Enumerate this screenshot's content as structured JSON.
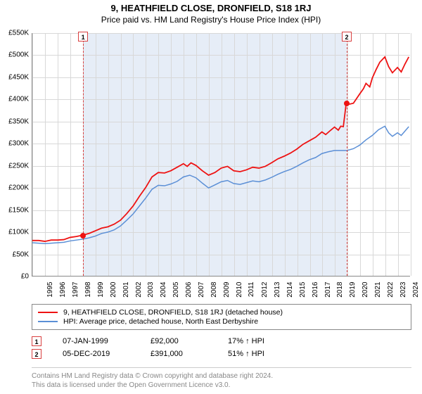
{
  "title": "9, HEATHFIELD CLOSE, DRONFIELD, S18 1RJ",
  "subtitle": "Price paid vs. HM Land Registry's House Price Index (HPI)",
  "chart": {
    "type": "line",
    "background_color": "#ffffff",
    "grid_color": "#d8d8d8",
    "ylim": [
      0,
      550000
    ],
    "ytick_step": 50000,
    "yticks": [
      "£0",
      "£50K",
      "£100K",
      "£150K",
      "£200K",
      "£250K",
      "£300K",
      "£350K",
      "£400K",
      "£450K",
      "£500K",
      "£550K"
    ],
    "xlim": [
      1995,
      2025
    ],
    "xticks": [
      1995,
      1996,
      1997,
      1998,
      1999,
      2000,
      2001,
      2002,
      2003,
      2004,
      2005,
      2006,
      2007,
      2008,
      2009,
      2010,
      2011,
      2012,
      2013,
      2014,
      2015,
      2016,
      2017,
      2018,
      2019,
      2020,
      2021,
      2022,
      2023,
      2024,
      2025
    ],
    "shade_range": [
      1999.02,
      2019.93
    ],
    "shade_color": "#e6edf7",
    "event_lines": [
      {
        "x": 1999.02,
        "label": "1"
      },
      {
        "x": 2019.93,
        "label": "2"
      }
    ],
    "event_line_color": "#d94040",
    "series": [
      {
        "name": "property",
        "color": "#ee1212",
        "width": 1.8,
        "points": [
          [
            1995.0,
            80000
          ],
          [
            1995.5,
            80000
          ],
          [
            1996.0,
            78000
          ],
          [
            1996.5,
            81000
          ],
          [
            1997.0,
            81000
          ],
          [
            1997.5,
            82000
          ],
          [
            1998.0,
            87000
          ],
          [
            1998.5,
            89000
          ],
          [
            1999.0,
            92000
          ],
          [
            1999.5,
            96000
          ],
          [
            2000.0,
            102000
          ],
          [
            2000.5,
            108000
          ],
          [
            2001.0,
            111000
          ],
          [
            2001.5,
            117000
          ],
          [
            2002.0,
            126000
          ],
          [
            2002.5,
            141000
          ],
          [
            2003.0,
            158000
          ],
          [
            2003.5,
            180000
          ],
          [
            2004.0,
            200000
          ],
          [
            2004.5,
            224000
          ],
          [
            2005.0,
            234000
          ],
          [
            2005.5,
            233000
          ],
          [
            2006.0,
            238000
          ],
          [
            2006.5,
            246000
          ],
          [
            2007.0,
            254000
          ],
          [
            2007.3,
            248000
          ],
          [
            2007.6,
            256000
          ],
          [
            2008.0,
            250000
          ],
          [
            2008.5,
            238000
          ],
          [
            2009.0,
            228000
          ],
          [
            2009.5,
            234000
          ],
          [
            2010.0,
            244000
          ],
          [
            2010.5,
            248000
          ],
          [
            2011.0,
            238000
          ],
          [
            2011.5,
            236000
          ],
          [
            2012.0,
            240000
          ],
          [
            2012.5,
            246000
          ],
          [
            2013.0,
            244000
          ],
          [
            2013.5,
            248000
          ],
          [
            2014.0,
            256000
          ],
          [
            2014.5,
            265000
          ],
          [
            2015.0,
            271000
          ],
          [
            2015.5,
            278000
          ],
          [
            2016.0,
            287000
          ],
          [
            2016.5,
            298000
          ],
          [
            2017.0,
            306000
          ],
          [
            2017.5,
            314000
          ],
          [
            2018.0,
            326000
          ],
          [
            2018.3,
            320000
          ],
          [
            2018.7,
            330000
          ],
          [
            2019.0,
            337000
          ],
          [
            2019.3,
            330000
          ],
          [
            2019.5,
            339000
          ],
          [
            2019.7,
            338000
          ],
          [
            2019.93,
            391000
          ],
          [
            2020.2,
            389000
          ],
          [
            2020.5,
            391000
          ],
          [
            2021.0,
            412000
          ],
          [
            2021.3,
            424000
          ],
          [
            2021.5,
            436000
          ],
          [
            2021.8,
            428000
          ],
          [
            2022.0,
            448000
          ],
          [
            2022.3,
            467000
          ],
          [
            2022.6,
            484000
          ],
          [
            2023.0,
            496000
          ],
          [
            2023.3,
            474000
          ],
          [
            2023.6,
            460000
          ],
          [
            2024.0,
            472000
          ],
          [
            2024.3,
            462000
          ],
          [
            2024.6,
            480000
          ],
          [
            2024.9,
            496000
          ]
        ]
      },
      {
        "name": "hpi",
        "color": "#5b8fd6",
        "width": 1.5,
        "points": [
          [
            1995.0,
            75000
          ],
          [
            1995.5,
            74000
          ],
          [
            1996.0,
            73000
          ],
          [
            1996.5,
            74000
          ],
          [
            1997.0,
            75000
          ],
          [
            1997.5,
            76000
          ],
          [
            1998.0,
            79000
          ],
          [
            1998.5,
            81000
          ],
          [
            1999.0,
            83000
          ],
          [
            1999.5,
            86000
          ],
          [
            2000.0,
            90000
          ],
          [
            2000.5,
            96000
          ],
          [
            2001.0,
            99000
          ],
          [
            2001.5,
            104000
          ],
          [
            2002.0,
            113000
          ],
          [
            2002.5,
            126000
          ],
          [
            2003.0,
            140000
          ],
          [
            2003.5,
            158000
          ],
          [
            2004.0,
            176000
          ],
          [
            2004.5,
            196000
          ],
          [
            2005.0,
            205000
          ],
          [
            2005.5,
            204000
          ],
          [
            2006.0,
            208000
          ],
          [
            2006.5,
            214000
          ],
          [
            2007.0,
            224000
          ],
          [
            2007.5,
            228000
          ],
          [
            2008.0,
            222000
          ],
          [
            2008.5,
            210000
          ],
          [
            2009.0,
            199000
          ],
          [
            2009.5,
            206000
          ],
          [
            2010.0,
            213000
          ],
          [
            2010.5,
            216000
          ],
          [
            2011.0,
            209000
          ],
          [
            2011.5,
            207000
          ],
          [
            2012.0,
            211000
          ],
          [
            2012.5,
            215000
          ],
          [
            2013.0,
            213000
          ],
          [
            2013.5,
            217000
          ],
          [
            2014.0,
            223000
          ],
          [
            2014.5,
            230000
          ],
          [
            2015.0,
            236000
          ],
          [
            2015.5,
            241000
          ],
          [
            2016.0,
            248000
          ],
          [
            2016.5,
            256000
          ],
          [
            2017.0,
            263000
          ],
          [
            2017.5,
            268000
          ],
          [
            2018.0,
            277000
          ],
          [
            2018.5,
            281000
          ],
          [
            2019.0,
            284000
          ],
          [
            2019.5,
            284000
          ],
          [
            2020.0,
            284000
          ],
          [
            2020.5,
            288000
          ],
          [
            2021.0,
            296000
          ],
          [
            2021.5,
            308000
          ],
          [
            2022.0,
            318000
          ],
          [
            2022.5,
            331000
          ],
          [
            2023.0,
            339000
          ],
          [
            2023.3,
            324000
          ],
          [
            2023.6,
            316000
          ],
          [
            2024.0,
            324000
          ],
          [
            2024.3,
            318000
          ],
          [
            2024.6,
            328000
          ],
          [
            2024.9,
            338000
          ]
        ]
      }
    ],
    "sale_points": [
      {
        "x": 1999.02,
        "y": 92000
      },
      {
        "x": 2019.93,
        "y": 391000
      }
    ],
    "sale_point_color": "#ee1212"
  },
  "legend": {
    "items": [
      {
        "color": "#ee1212",
        "label": "9, HEATHFIELD CLOSE, DRONFIELD, S18 1RJ (detached house)"
      },
      {
        "color": "#5b8fd6",
        "label": "HPI: Average price, detached house, North East Derbyshire"
      }
    ]
  },
  "sales": [
    {
      "marker": "1",
      "date": "07-JAN-1999",
      "price": "£92,000",
      "hpi": "17% ↑ HPI"
    },
    {
      "marker": "2",
      "date": "05-DEC-2019",
      "price": "£391,000",
      "hpi": "51% ↑ HPI"
    }
  ],
  "footer_line1": "Contains HM Land Registry data © Crown copyright and database right 2024.",
  "footer_line2": "This data is licensed under the Open Government Licence v3.0."
}
